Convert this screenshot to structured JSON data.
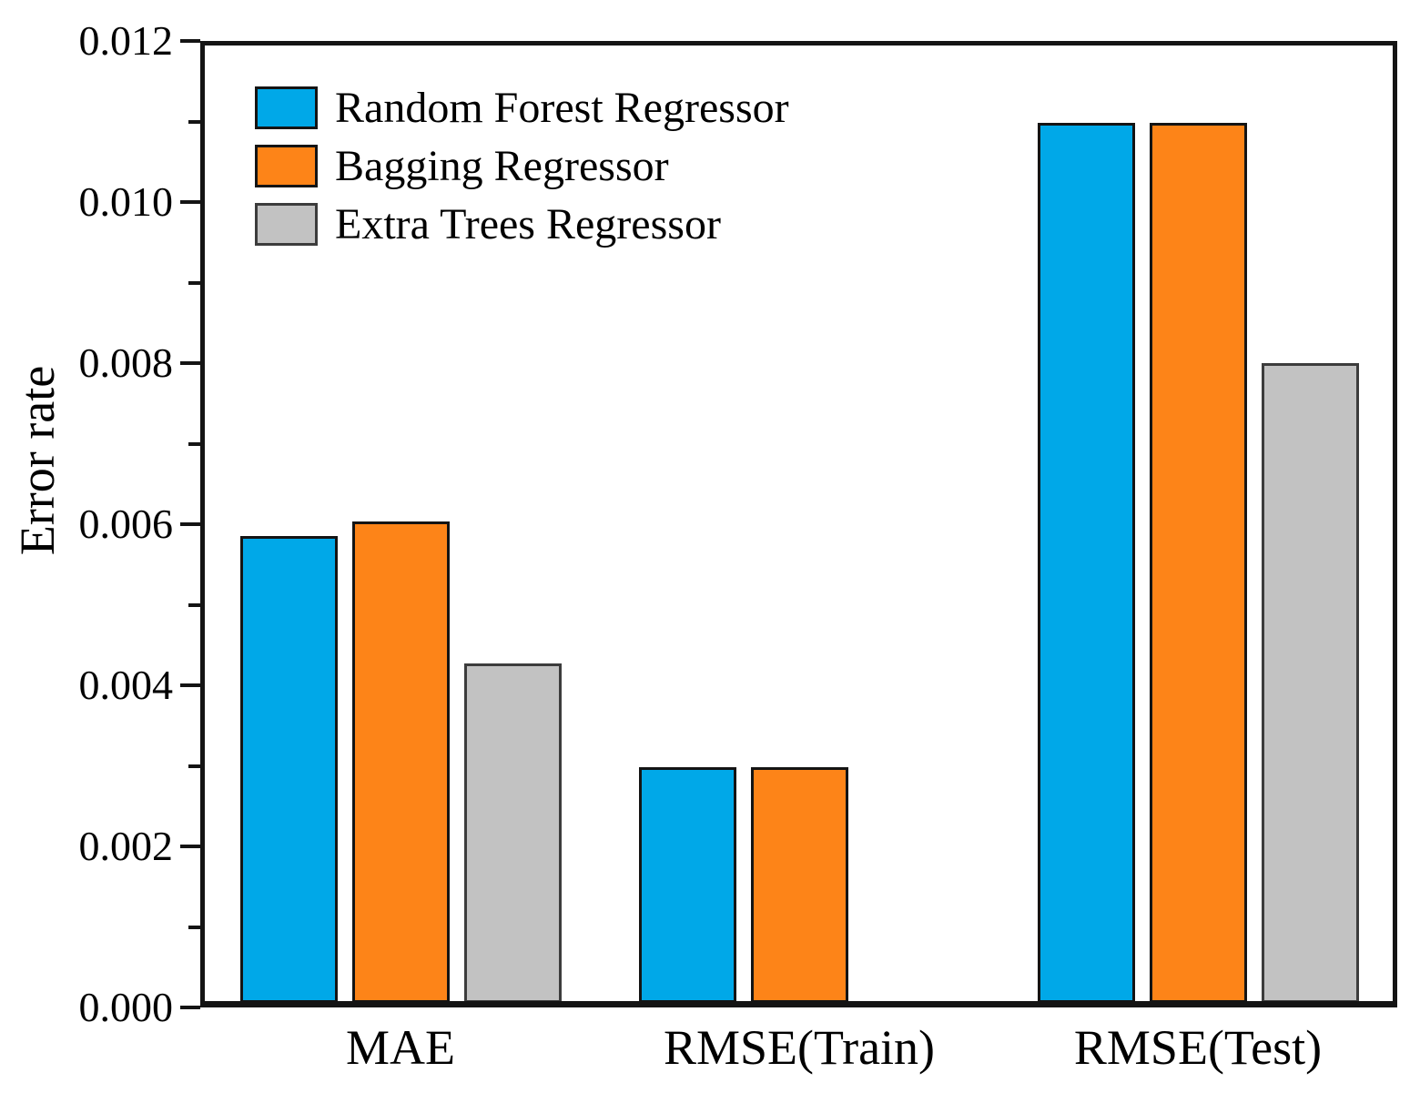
{
  "chart_data": {
    "type": "bar",
    "title": "",
    "xlabel": "",
    "ylabel": "Error rate",
    "categories": [
      "MAE",
      "RMSE(Train)",
      "RMSE(Test)"
    ],
    "series": [
      {
        "name": "Random Forest Regressor",
        "color": "#00A8E8",
        "border_color": "#141414",
        "values": [
          0.00585,
          0.00298,
          0.01098
        ]
      },
      {
        "name": "Bagging Regressor",
        "color": "#FD8418",
        "border_color": "#141414",
        "values": [
          0.00603,
          0.00298,
          0.01098
        ]
      },
      {
        "name": "Extra Trees Regressor",
        "color": "#C2C2C2",
        "border_color": "#3C3C3C",
        "values": [
          0.00427,
          0,
          0.008
        ]
      }
    ],
    "ylim": [
      0,
      0.012
    ],
    "y_major_ticks": [
      0.012,
      0.01,
      0.008,
      0.006,
      0.004,
      0.002,
      0.0
    ],
    "y_tick_labels": [
      "0.012",
      "0.010",
      "0.008",
      "0.006",
      "0.004",
      "0.002",
      "0.000"
    ],
    "y_minor_ticks": [
      0.011,
      0.009,
      0.007,
      0.005,
      0.003,
      0.001
    ],
    "legend_position": "upper-left",
    "grid": false,
    "background": "#FFFFFF"
  }
}
